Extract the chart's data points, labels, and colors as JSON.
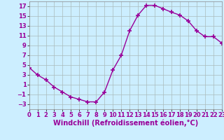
{
  "x": [
    0,
    1,
    2,
    3,
    4,
    5,
    6,
    7,
    8,
    9,
    10,
    11,
    12,
    13,
    14,
    15,
    16,
    17,
    18,
    19,
    20,
    21,
    22,
    23
  ],
  "y": [
    4.5,
    3.0,
    2.0,
    0.5,
    -0.5,
    -1.5,
    -2.0,
    -2.5,
    -2.5,
    -0.5,
    4.0,
    7.0,
    12.0,
    15.2,
    17.2,
    17.2,
    16.5,
    15.8,
    15.2,
    14.0,
    12.0,
    10.8,
    10.8,
    9.5
  ],
  "line_color": "#990099",
  "marker": "+",
  "marker_size": 4,
  "bg_color": "#cceeff",
  "grid_color": "#aabbbb",
  "xlabel": "Windchill (Refroidissement éolien,°C)",
  "ylim": [
    -4,
    18
  ],
  "yticks": [
    -3,
    -1,
    1,
    3,
    5,
    7,
    9,
    11,
    13,
    15,
    17
  ],
  "xlim": [
    0,
    23
  ],
  "xticks": [
    0,
    1,
    2,
    3,
    4,
    5,
    6,
    7,
    8,
    9,
    10,
    11,
    12,
    13,
    14,
    15,
    16,
    17,
    18,
    19,
    20,
    21,
    22,
    23
  ],
  "tick_fontsize": 6,
  "xlabel_fontsize": 7
}
